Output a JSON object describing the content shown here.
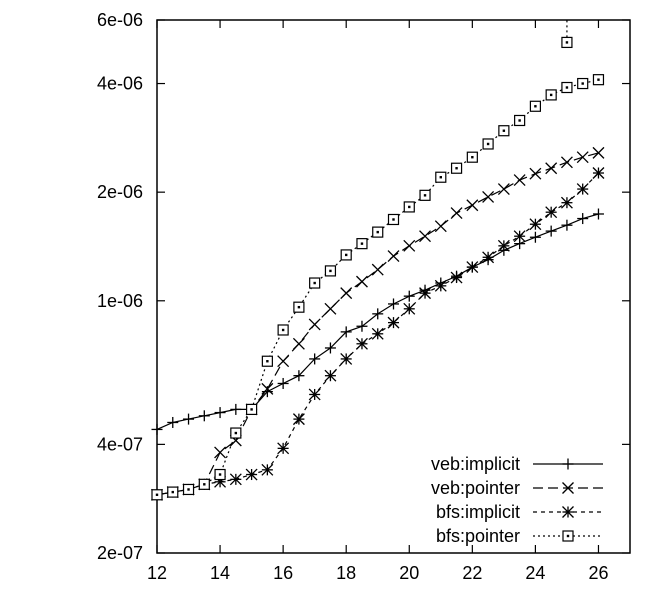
{
  "chart_data": {
    "type": "line",
    "title": "",
    "xlabel": "",
    "ylabel": "",
    "xlim": [
      12,
      27
    ],
    "ylim": [
      2e-07,
      6e-06
    ],
    "y_scale": "log",
    "grid": false,
    "legend_position": "bottom-right",
    "x_ticks": [
      12,
      14,
      16,
      18,
      20,
      22,
      24,
      26
    ],
    "x_tick_labels": [
      "12",
      "14",
      "16",
      "18",
      "20",
      "22",
      "24",
      "26"
    ],
    "y_ticks": [
      2e-07,
      4e-07,
      1e-06,
      2e-06,
      4e-06,
      6e-06
    ],
    "y_tick_labels": [
      "2e-07",
      "4e-07",
      "1e-06",
      "2e-06",
      "4e-06",
      "6e-06"
    ],
    "series": [
      {
        "name": "veb:implicit",
        "marker": "plus",
        "dash": "",
        "points": [
          [
            12,
            4.4e-07
          ],
          [
            12.5,
            4.6e-07
          ],
          [
            13,
            4.7e-07
          ],
          [
            13.5,
            4.8e-07
          ],
          [
            14,
            4.9e-07
          ],
          [
            14.5,
            5e-07
          ],
          [
            15,
            5e-07
          ],
          [
            15.5,
            5.6e-07
          ],
          [
            16,
            5.9e-07
          ],
          [
            16.5,
            6.2e-07
          ],
          [
            17,
            6.9e-07
          ],
          [
            17.5,
            7.4e-07
          ],
          [
            18,
            8.2e-07
          ],
          [
            18.5,
            8.5e-07
          ],
          [
            19,
            9.2e-07
          ],
          [
            19.5,
            9.8e-07
          ],
          [
            20,
            1.03e-06
          ],
          [
            20.5,
            1.07e-06
          ],
          [
            21,
            1.12e-06
          ],
          [
            21.5,
            1.17e-06
          ],
          [
            22,
            1.24e-06
          ],
          [
            22.5,
            1.3e-06
          ],
          [
            23,
            1.38e-06
          ],
          [
            23.5,
            1.44e-06
          ],
          [
            24,
            1.5e-06
          ],
          [
            24.5,
            1.56e-06
          ],
          [
            25,
            1.62e-06
          ],
          [
            25.5,
            1.69e-06
          ],
          [
            26,
            1.74e-06
          ]
        ]
      },
      {
        "name": "veb:pointer",
        "marker": "cross",
        "dash": "10,5",
        "points": [
          [
            12,
            2.9e-07
          ],
          [
            12.5,
            2.95e-07
          ],
          [
            13,
            3e-07
          ],
          [
            13.5,
            3.1e-07
          ],
          [
            14,
            3.8e-07
          ],
          [
            14.5,
            4.1e-07
          ],
          [
            15,
            5e-07
          ],
          [
            15.5,
            5.7e-07
          ],
          [
            16,
            6.8e-07
          ],
          [
            16.5,
            7.6e-07
          ],
          [
            17,
            8.6e-07
          ],
          [
            17.5,
            9.5e-07
          ],
          [
            18,
            1.05e-06
          ],
          [
            18.5,
            1.13e-06
          ],
          [
            19,
            1.22e-06
          ],
          [
            19.5,
            1.33e-06
          ],
          [
            20,
            1.42e-06
          ],
          [
            20.5,
            1.51e-06
          ],
          [
            21,
            1.61e-06
          ],
          [
            21.5,
            1.75e-06
          ],
          [
            22,
            1.84e-06
          ],
          [
            22.5,
            1.94e-06
          ],
          [
            23,
            2.04e-06
          ],
          [
            23.5,
            2.16e-06
          ],
          [
            24,
            2.25e-06
          ],
          [
            24.5,
            2.33e-06
          ],
          [
            25,
            2.42e-06
          ],
          [
            25.5,
            2.5e-06
          ],
          [
            26,
            2.57e-06
          ]
        ]
      },
      {
        "name": "bfs:implicit",
        "marker": "star",
        "dash": "4,4",
        "points": [
          [
            12,
            2.9e-07
          ],
          [
            12.5,
            2.95e-07
          ],
          [
            13,
            3e-07
          ],
          [
            13.5,
            3.1e-07
          ],
          [
            14,
            3.15e-07
          ],
          [
            14.5,
            3.2e-07
          ],
          [
            15,
            3.3e-07
          ],
          [
            15.5,
            3.4e-07
          ],
          [
            16,
            3.9e-07
          ],
          [
            16.5,
            4.7e-07
          ],
          [
            17,
            5.5e-07
          ],
          [
            17.5,
            6.2e-07
          ],
          [
            18,
            6.9e-07
          ],
          [
            18.5,
            7.6e-07
          ],
          [
            19,
            8.1e-07
          ],
          [
            19.5,
            8.7e-07
          ],
          [
            20,
            9.5e-07
          ],
          [
            20.5,
            1.05e-06
          ],
          [
            21,
            1.1e-06
          ],
          [
            21.5,
            1.16e-06
          ],
          [
            22,
            1.24e-06
          ],
          [
            22.5,
            1.32e-06
          ],
          [
            23,
            1.42e-06
          ],
          [
            23.5,
            1.51e-06
          ],
          [
            24,
            1.63e-06
          ],
          [
            24.5,
            1.76e-06
          ],
          [
            25,
            1.87e-06
          ],
          [
            25.5,
            2.04e-06
          ],
          [
            26,
            2.26e-06
          ]
        ]
      },
      {
        "name": "bfs:pointer",
        "marker": "box",
        "dash": "2,3",
        "points": [
          [
            12,
            2.9e-07
          ],
          [
            12.5,
            2.95e-07
          ],
          [
            13,
            3e-07
          ],
          [
            13.5,
            3.1e-07
          ],
          [
            14,
            3.3e-07
          ],
          [
            14.5,
            4.3e-07
          ],
          [
            15,
            5e-07
          ],
          [
            15.5,
            6.8e-07
          ],
          [
            16,
            8.3e-07
          ],
          [
            16.5,
            9.6e-07
          ],
          [
            17,
            1.12e-06
          ],
          [
            17.5,
            1.21e-06
          ],
          [
            18,
            1.34e-06
          ],
          [
            18.5,
            1.44e-06
          ],
          [
            19,
            1.55e-06
          ],
          [
            19.5,
            1.68e-06
          ],
          [
            20,
            1.82e-06
          ],
          [
            20.5,
            1.96e-06
          ],
          [
            21,
            2.2e-06
          ],
          [
            21.5,
            2.33e-06
          ],
          [
            22,
            2.5e-06
          ],
          [
            22.5,
            2.72e-06
          ],
          [
            23,
            2.96e-06
          ],
          [
            23.5,
            3.16e-06
          ],
          [
            24,
            3.46e-06
          ],
          [
            24.5,
            3.72e-06
          ],
          [
            25,
            3.9e-06
          ],
          [
            25.5,
            4e-06
          ],
          [
            26,
            4.1e-06
          ]
        ],
        "extra_points": [
          [
            25,
            5.2e-06
          ]
        ],
        "vertical_segment": [
          [
            25,
            5.2e-06
          ],
          [
            25,
            6e-06
          ]
        ]
      }
    ]
  }
}
